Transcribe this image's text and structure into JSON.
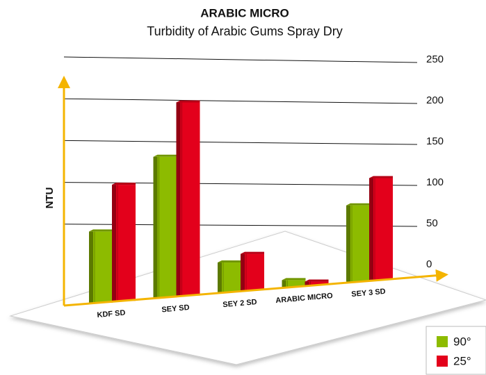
{
  "chart_data": {
    "type": "bar3d",
    "title": "ARABIC MICRO",
    "subtitle": "Turbidity of Arabic Gums Spray Dry",
    "y_label": "NTU",
    "categories": [
      "KDF SD",
      "SEY SD",
      "SEY 2 SD",
      "ARABIC MICRO",
      "SEY 3 SD"
    ],
    "series": [
      {
        "name": "90°",
        "color": "#8dbb00",
        "values": [
          84,
          166,
          35,
          8,
          90
        ]
      },
      {
        "name": "25°",
        "color": "#e3001b",
        "values": [
          137,
          228,
          43,
          4,
          120
        ]
      }
    ],
    "ylim": [
      0,
      250
    ],
    "yticks": [
      0,
      50,
      100,
      150,
      200,
      250
    ],
    "grid": true,
    "legend": "lower right"
  }
}
